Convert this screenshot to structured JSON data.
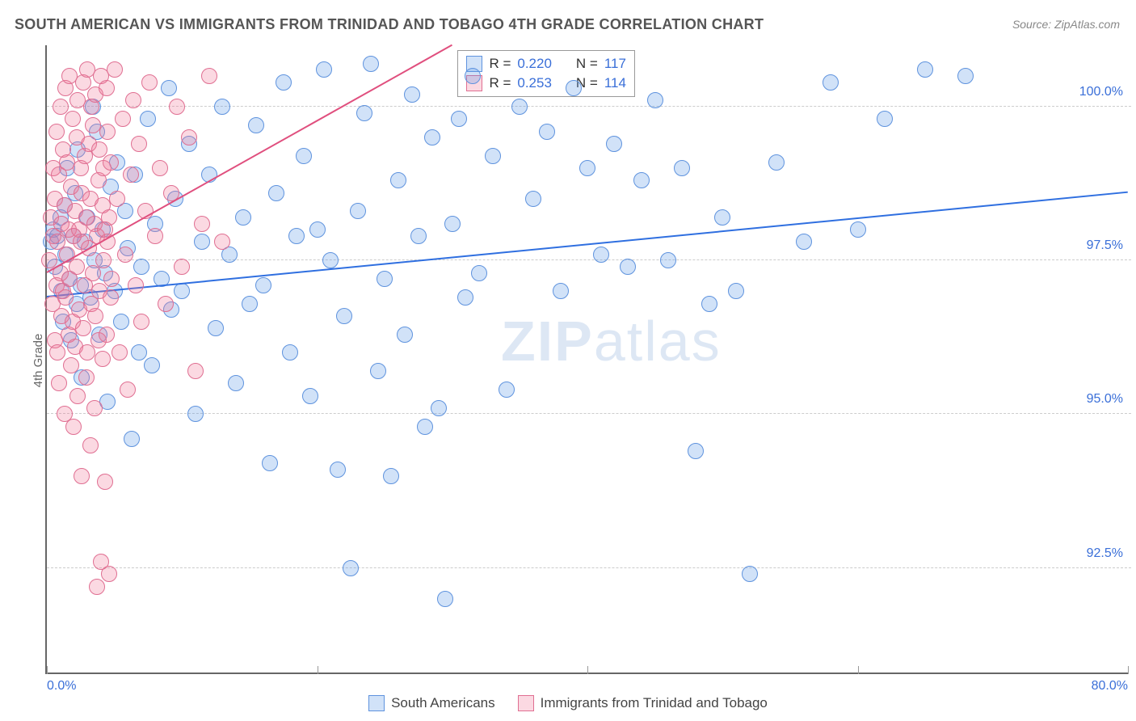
{
  "title": "SOUTH AMERICAN VS IMMIGRANTS FROM TRINIDAD AND TOBAGO 4TH GRADE CORRELATION CHART",
  "source_label": "Source: ",
  "source_name": "ZipAtlas.com",
  "ylabel": "4th Grade",
  "watermark_a": "ZIP",
  "watermark_b": "atlas",
  "chart": {
    "type": "scatter",
    "background_color": "#ffffff",
    "grid_color": "#cccccc",
    "xlim": [
      0,
      80
    ],
    "ylim": [
      90.8,
      101.0
    ],
    "xticks": [
      0,
      20,
      40,
      60,
      80
    ],
    "xtick_labels": [
      "0.0%",
      "",
      "",
      "",
      "80.0%"
    ],
    "yticks": [
      92.5,
      95.0,
      97.5,
      100.0
    ],
    "ytick_labels": [
      "92.5%",
      "95.0%",
      "97.5%",
      "100.0%"
    ],
    "marker_radius": 9,
    "marker_border_width": 1.2,
    "trend_line_width": 2.5
  },
  "series": [
    {
      "key": "south_americans",
      "label": "South Americans",
      "fill": "rgba(90,150,230,0.28)",
      "stroke": "#5f93de",
      "trend_color": "#2f6fe0",
      "r_label": "R = ",
      "r_value": "0.220",
      "n_label": "N = ",
      "n_value": "117",
      "trend": {
        "x1": 0,
        "y1": 96.9,
        "x2": 80,
        "y2": 98.6
      },
      "points": [
        [
          0.3,
          97.8
        ],
        [
          0.5,
          98.0
        ],
        [
          0.6,
          97.4
        ],
        [
          0.8,
          97.9
        ],
        [
          1.0,
          98.2
        ],
        [
          1.1,
          97.0
        ],
        [
          1.2,
          96.5
        ],
        [
          1.3,
          98.4
        ],
        [
          1.4,
          97.6
        ],
        [
          1.5,
          99.0
        ],
        [
          1.7,
          97.2
        ],
        [
          1.8,
          96.2
        ],
        [
          2.0,
          97.9
        ],
        [
          2.1,
          98.6
        ],
        [
          2.2,
          96.8
        ],
        [
          2.3,
          99.3
        ],
        [
          2.5,
          97.1
        ],
        [
          2.6,
          95.6
        ],
        [
          2.8,
          97.8
        ],
        [
          3.0,
          98.2
        ],
        [
          3.2,
          96.9
        ],
        [
          3.4,
          100.0
        ],
        [
          3.5,
          97.5
        ],
        [
          3.7,
          99.6
        ],
        [
          3.9,
          96.3
        ],
        [
          4.1,
          98.0
        ],
        [
          4.3,
          97.3
        ],
        [
          4.5,
          95.2
        ],
        [
          4.7,
          98.7
        ],
        [
          5.0,
          97.0
        ],
        [
          5.2,
          99.1
        ],
        [
          5.5,
          96.5
        ],
        [
          5.8,
          98.3
        ],
        [
          6.0,
          97.7
        ],
        [
          6.3,
          94.6
        ],
        [
          6.5,
          98.9
        ],
        [
          6.8,
          96.0
        ],
        [
          7.0,
          97.4
        ],
        [
          7.5,
          99.8
        ],
        [
          7.8,
          95.8
        ],
        [
          8.0,
          98.1
        ],
        [
          8.5,
          97.2
        ],
        [
          9.0,
          100.3
        ],
        [
          9.2,
          96.7
        ],
        [
          9.5,
          98.5
        ],
        [
          10.0,
          97.0
        ],
        [
          10.5,
          99.4
        ],
        [
          11.0,
          95.0
        ],
        [
          11.5,
          97.8
        ],
        [
          12.0,
          98.9
        ],
        [
          12.5,
          96.4
        ],
        [
          13.0,
          100.0
        ],
        [
          13.5,
          97.6
        ],
        [
          14.0,
          95.5
        ],
        [
          14.5,
          98.2
        ],
        [
          15.0,
          96.8
        ],
        [
          15.5,
          99.7
        ],
        [
          16.0,
          97.1
        ],
        [
          16.5,
          94.2
        ],
        [
          17.0,
          98.6
        ],
        [
          17.5,
          100.4
        ],
        [
          18.0,
          96.0
        ],
        [
          18.5,
          97.9
        ],
        [
          19.0,
          99.2
        ],
        [
          19.5,
          95.3
        ],
        [
          20.0,
          98.0
        ],
        [
          20.5,
          100.6
        ],
        [
          21.0,
          97.5
        ],
        [
          21.5,
          94.1
        ],
        [
          22.0,
          96.6
        ],
        [
          22.5,
          92.5
        ],
        [
          23.0,
          98.3
        ],
        [
          23.5,
          99.9
        ],
        [
          24.0,
          100.7
        ],
        [
          24.5,
          95.7
        ],
        [
          25.0,
          97.2
        ],
        [
          25.5,
          94.0
        ],
        [
          26.0,
          98.8
        ],
        [
          26.5,
          96.3
        ],
        [
          27.0,
          100.2
        ],
        [
          27.5,
          97.9
        ],
        [
          28.0,
          94.8
        ],
        [
          28.5,
          99.5
        ],
        [
          29.0,
          95.1
        ],
        [
          29.5,
          92.0
        ],
        [
          30.0,
          98.1
        ],
        [
          30.5,
          99.8
        ],
        [
          31.0,
          96.9
        ],
        [
          31.5,
          100.5
        ],
        [
          32.0,
          97.3
        ],
        [
          33.0,
          99.2
        ],
        [
          34.0,
          95.4
        ],
        [
          35.0,
          100.0
        ],
        [
          36.0,
          98.5
        ],
        [
          37.0,
          99.6
        ],
        [
          38.0,
          97.0
        ],
        [
          39.0,
          100.3
        ],
        [
          40.0,
          99.0
        ],
        [
          41.0,
          97.6
        ],
        [
          42.0,
          99.4
        ],
        [
          43.0,
          97.4
        ],
        [
          44.0,
          98.8
        ],
        [
          45.0,
          100.1
        ],
        [
          46.0,
          97.5
        ],
        [
          47.0,
          99.0
        ],
        [
          48.0,
          94.4
        ],
        [
          49.0,
          96.8
        ],
        [
          50.0,
          98.2
        ],
        [
          51.0,
          97.0
        ],
        [
          52.0,
          92.4
        ],
        [
          54.0,
          99.1
        ],
        [
          56.0,
          97.8
        ],
        [
          58.0,
          100.4
        ],
        [
          60.0,
          98.0
        ],
        [
          62.0,
          99.8
        ],
        [
          65.0,
          100.6
        ],
        [
          68.0,
          100.5
        ]
      ]
    },
    {
      "key": "trinidad_tobago",
      "label": "Immigrants from Trinidad and Tobago",
      "fill": "rgba(240,120,150,0.28)",
      "stroke": "#e06f92",
      "trend_color": "#e04f7e",
      "r_label": "R = ",
      "r_value": "0.253",
      "n_label": "N = ",
      "n_value": "114",
      "trend": {
        "x1": 0,
        "y1": 97.3,
        "x2": 30,
        "y2": 101.0
      },
      "points": [
        [
          0.2,
          97.5
        ],
        [
          0.3,
          98.2
        ],
        [
          0.4,
          96.8
        ],
        [
          0.5,
          97.9
        ],
        [
          0.5,
          99.0
        ],
        [
          0.6,
          96.2
        ],
        [
          0.6,
          98.5
        ],
        [
          0.7,
          97.1
        ],
        [
          0.7,
          99.6
        ],
        [
          0.8,
          96.0
        ],
        [
          0.8,
          97.8
        ],
        [
          0.9,
          98.9
        ],
        [
          0.9,
          95.5
        ],
        [
          1.0,
          97.3
        ],
        [
          1.0,
          100.0
        ],
        [
          1.1,
          96.6
        ],
        [
          1.1,
          98.1
        ],
        [
          1.2,
          99.3
        ],
        [
          1.2,
          97.0
        ],
        [
          1.3,
          95.0
        ],
        [
          1.3,
          98.4
        ],
        [
          1.4,
          96.9
        ],
        [
          1.4,
          100.3
        ],
        [
          1.5,
          97.6
        ],
        [
          1.5,
          99.1
        ],
        [
          1.6,
          96.3
        ],
        [
          1.6,
          98.0
        ],
        [
          1.7,
          100.5
        ],
        [
          1.7,
          97.2
        ],
        [
          1.8,
          95.8
        ],
        [
          1.8,
          98.7
        ],
        [
          1.9,
          96.5
        ],
        [
          1.9,
          99.8
        ],
        [
          2.0,
          97.9
        ],
        [
          2.0,
          94.8
        ],
        [
          2.1,
          98.3
        ],
        [
          2.1,
          96.1
        ],
        [
          2.2,
          99.5
        ],
        [
          2.2,
          97.4
        ],
        [
          2.3,
          100.1
        ],
        [
          2.3,
          95.3
        ],
        [
          2.4,
          98.0
        ],
        [
          2.4,
          96.7
        ],
        [
          2.5,
          99.0
        ],
        [
          2.5,
          97.8
        ],
        [
          2.6,
          94.0
        ],
        [
          2.6,
          98.6
        ],
        [
          2.7,
          96.4
        ],
        [
          2.7,
          100.4
        ],
        [
          2.8,
          97.1
        ],
        [
          2.8,
          99.2
        ],
        [
          2.9,
          95.6
        ],
        [
          2.9,
          98.2
        ],
        [
          3.0,
          96.0
        ],
        [
          3.0,
          100.6
        ],
        [
          3.1,
          97.7
        ],
        [
          3.1,
          99.4
        ],
        [
          3.2,
          94.5
        ],
        [
          3.2,
          98.5
        ],
        [
          3.3,
          96.8
        ],
        [
          3.3,
          100.0
        ],
        [
          3.4,
          97.3
        ],
        [
          3.4,
          99.7
        ],
        [
          3.5,
          95.1
        ],
        [
          3.5,
          98.1
        ],
        [
          3.6,
          96.6
        ],
        [
          3.6,
          100.2
        ],
        [
          3.7,
          97.9
        ],
        [
          3.7,
          92.2
        ],
        [
          3.8,
          98.8
        ],
        [
          3.8,
          96.2
        ],
        [
          3.9,
          99.3
        ],
        [
          3.9,
          97.0
        ],
        [
          4.0,
          100.5
        ],
        [
          4.0,
          92.6
        ],
        [
          4.1,
          98.4
        ],
        [
          4.1,
          95.9
        ],
        [
          4.2,
          99.0
        ],
        [
          4.2,
          97.5
        ],
        [
          4.3,
          93.9
        ],
        [
          4.3,
          98.0
        ],
        [
          4.4,
          96.3
        ],
        [
          4.4,
          100.3
        ],
        [
          4.5,
          97.8
        ],
        [
          4.5,
          99.6
        ],
        [
          4.6,
          92.4
        ],
        [
          4.6,
          98.2
        ],
        [
          4.7,
          96.9
        ],
        [
          4.7,
          99.1
        ],
        [
          4.8,
          97.2
        ],
        [
          5.0,
          100.6
        ],
        [
          5.2,
          98.5
        ],
        [
          5.4,
          96.0
        ],
        [
          5.6,
          99.8
        ],
        [
          5.8,
          97.6
        ],
        [
          6.0,
          95.4
        ],
        [
          6.2,
          98.9
        ],
        [
          6.4,
          100.1
        ],
        [
          6.6,
          97.1
        ],
        [
          6.8,
          99.4
        ],
        [
          7.0,
          96.5
        ],
        [
          7.3,
          98.3
        ],
        [
          7.6,
          100.4
        ],
        [
          8.0,
          97.9
        ],
        [
          8.4,
          99.0
        ],
        [
          8.8,
          96.8
        ],
        [
          9.2,
          98.6
        ],
        [
          9.6,
          100.0
        ],
        [
          10.0,
          97.4
        ],
        [
          10.5,
          99.5
        ],
        [
          11.0,
          95.7
        ],
        [
          11.5,
          98.1
        ],
        [
          12.0,
          100.5
        ],
        [
          13.0,
          97.8
        ]
      ]
    }
  ]
}
